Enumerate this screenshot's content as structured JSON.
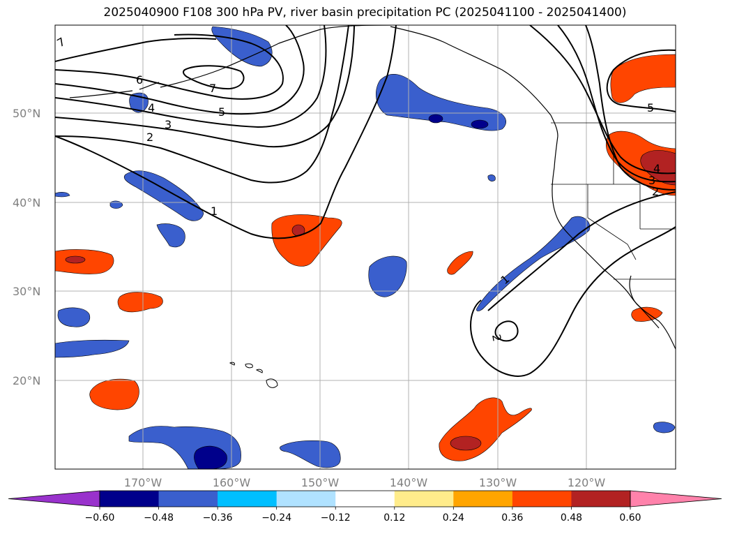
{
  "title": "2025040900 F108 300 hPa PV, river basin precipitation PC (2025041100 - 2025041400)",
  "map": {
    "lat_labels": [
      "50°N",
      "40°N",
      "30°N",
      "20°N"
    ],
    "lon_labels": [
      "170°W",
      "160°W",
      "150°W",
      "140°W",
      "130°W",
      "120°W"
    ],
    "contour_labels": [
      "7",
      "6",
      "7",
      "5",
      "4",
      "3",
      "2",
      "1",
      "1",
      "5",
      "4",
      "3",
      "2",
      "2"
    ]
  },
  "colorbar": {
    "ticks": [
      "−0.60",
      "−0.48",
      "−0.36",
      "−0.24",
      "−0.12",
      "0.12",
      "0.24",
      "0.36",
      "0.48",
      "0.60"
    ],
    "colors": [
      "#9932cc",
      "#00008b",
      "#3a5fcd",
      "#00bfff",
      "#b0e2ff",
      "#ffffff",
      "#ffec8b",
      "#ffa500",
      "#ff4500",
      "#b22222",
      "#ff82ab"
    ]
  },
  "colors": {
    "neg_strong": "#00008b",
    "neg": "#3a5fcd",
    "neg_light": "#00bfff",
    "pos": "#ff4500",
    "pos_strong": "#b22222",
    "pos_light": "#ffa500"
  }
}
